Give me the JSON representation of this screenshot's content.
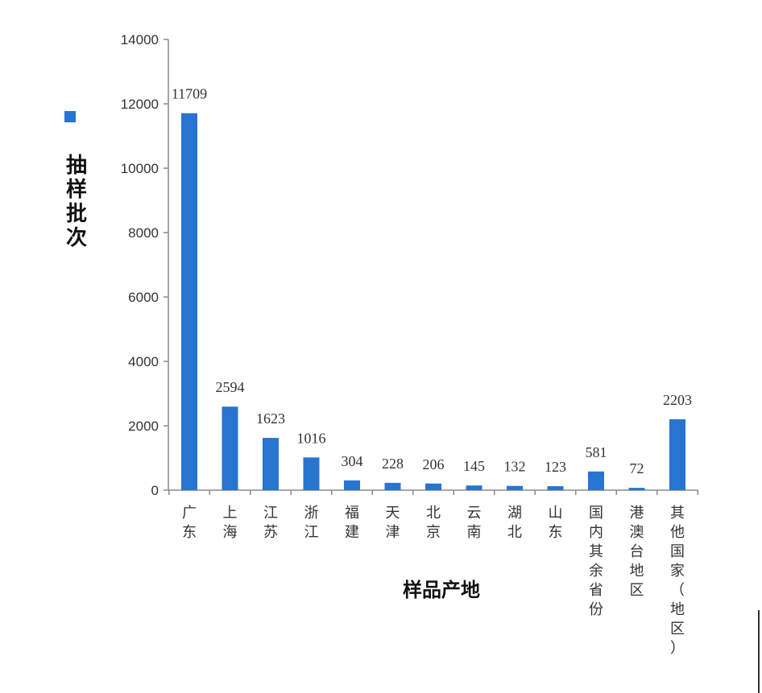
{
  "chart_data": {
    "type": "bar",
    "categories": [
      "广东",
      "上海",
      "江苏",
      "浙江",
      "福建",
      "天津",
      "北京",
      "云南",
      "湖北",
      "山东",
      "国内其余省份",
      "港澳台地区",
      "其他国家（地区）"
    ],
    "values": [
      11709,
      2594,
      1623,
      1016,
      304,
      228,
      206,
      145,
      132,
      123,
      581,
      72,
      2203
    ],
    "data_labels": [
      "11709",
      "2594",
      "1623",
      "1016",
      "304",
      "228",
      "206",
      "145",
      "132",
      "123",
      "581",
      "72",
      "2203"
    ],
    "ylabel": "抽样批次",
    "xlabel": "样品产地",
    "ylim": [
      0,
      14000
    ],
    "yticks": [
      0,
      2000,
      4000,
      6000,
      8000,
      10000,
      12000,
      14000
    ],
    "ytick_labels": [
      "0",
      "2000",
      "4000",
      "6000",
      "8000",
      "10000",
      "12000",
      "14000"
    ],
    "grid": false,
    "legend": "left",
    "colors": {
      "bar": "#2874d1",
      "axis": "#888888"
    }
  }
}
